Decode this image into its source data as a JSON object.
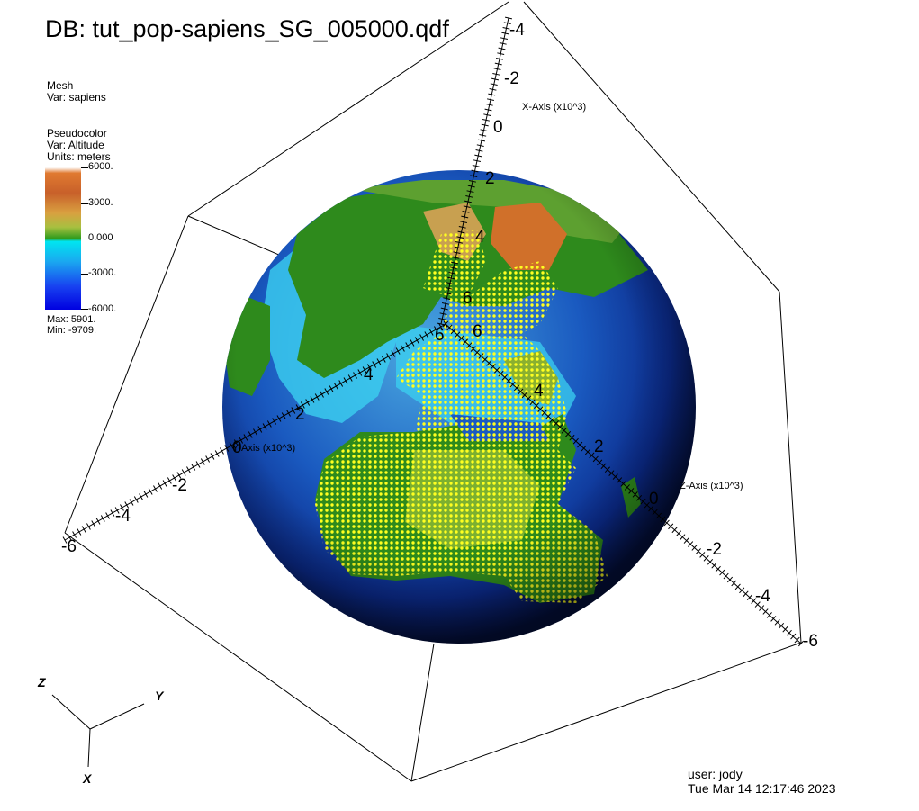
{
  "title": "DB: tut_pop-sapiens_SG_005000.qdf",
  "mesh_legend": {
    "plot": "Mesh",
    "var": "Var: sapiens"
  },
  "pseudo_legend": {
    "plot": "Pseudocolor",
    "var": "Var: Altitude",
    "units": "Units: meters",
    "ticks": [
      "6000.",
      "3000.",
      "0.000",
      "-3000.",
      "-6000."
    ],
    "max": "Max:  5901.",
    "min": "Min:  -9709."
  },
  "axes": {
    "x_label": "X-Axis (x10^3)",
    "y_label": "Y-Axis (x10^3)",
    "z_label": "Z-Axis (x10^3)",
    "x_ticks": [
      "-4",
      "-2",
      "0",
      "2",
      "4",
      "6"
    ],
    "y_ticks": [
      "-6",
      "-4",
      "-2",
      "0",
      "2",
      "4",
      "6"
    ],
    "z_ticks": [
      "6",
      "4",
      "2",
      "0",
      "-2",
      "-4",
      "-6"
    ]
  },
  "triad": {
    "x": "X",
    "y": "Y",
    "z": "Z"
  },
  "footer": {
    "user": "user: jody",
    "timestamp": "Tue Mar 14 12:17:46 2023"
  },
  "colors": {
    "ocean_deep": "#0a2a8a",
    "ocean_shallow": "#3bd0f0",
    "land": "#2e8a1c",
    "highland": "#d07a2a",
    "population": "#ffff20"
  }
}
